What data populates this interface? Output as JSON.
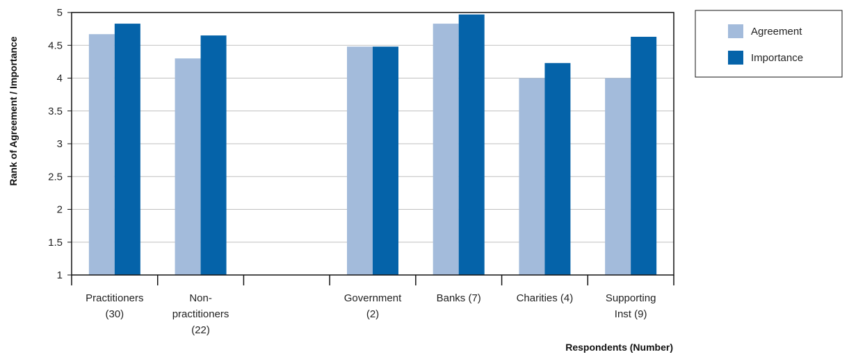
{
  "chart_data": {
    "type": "bar",
    "categories": [
      [
        "Practitioners",
        "(30)"
      ],
      [
        "Non-",
        "practitioners",
        "(22)"
      ],
      [],
      [
        "Government",
        "(2)"
      ],
      [
        "Banks (7)"
      ],
      [
        "Charities (4)"
      ],
      [
        "Supporting",
        "Inst (9)"
      ]
    ],
    "series": [
      {
        "name": "Agreement",
        "color": "#a3bbdb",
        "values": [
          4.67,
          4.3,
          null,
          4.48,
          4.83,
          4.0,
          4.0
        ]
      },
      {
        "name": "Importance",
        "color": "#0563a9",
        "values": [
          4.83,
          4.65,
          null,
          4.48,
          4.97,
          4.23,
          4.63
        ]
      }
    ],
    "xlabel": "Respondents (Number)",
    "ylabel": "Rank of Agreement / Importance",
    "ylim": [
      1,
      5
    ],
    "yticks": [
      "1",
      "1.5",
      "2",
      "2.5",
      "3",
      "3.5",
      "4",
      "4.5",
      "5"
    ],
    "grid": true,
    "legend_position": "top-right"
  }
}
